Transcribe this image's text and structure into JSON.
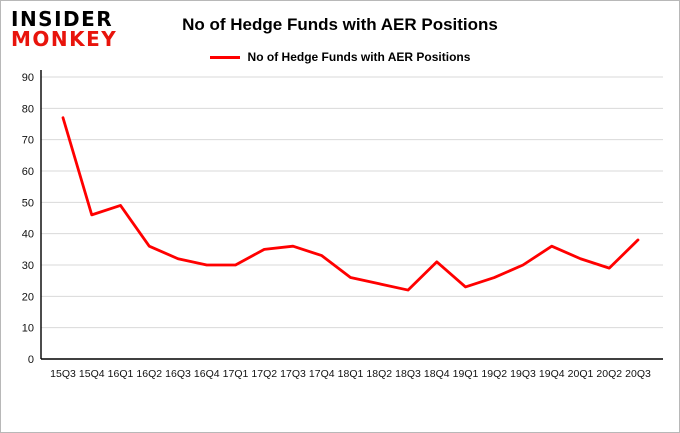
{
  "logo": {
    "line1": "INSIDER",
    "line2": "MONKEY"
  },
  "header": {
    "title": "No of Hedge Funds with AER Positions"
  },
  "legend": {
    "label": "No of Hedge Funds with AER Positions"
  },
  "colors": {
    "line": "#ff0000",
    "logo_red": "#e8140c",
    "grid": "#d9d9d9",
    "axis": "#000000",
    "tick_text": "#111111"
  },
  "chart_data": {
    "type": "line",
    "title": "No of Hedge Funds with AER Positions",
    "categories": [
      "15Q3",
      "15Q4",
      "16Q1",
      "16Q2",
      "16Q3",
      "16Q4",
      "17Q1",
      "17Q2",
      "17Q3",
      "17Q4",
      "18Q1",
      "18Q2",
      "18Q3",
      "18Q4",
      "19Q1",
      "19Q2",
      "19Q3",
      "19Q4",
      "20Q1",
      "20Q2",
      "20Q3"
    ],
    "series": [
      {
        "name": "No of Hedge Funds with AER Positions",
        "color": "#ff0000",
        "values": [
          77,
          46,
          49,
          36,
          32,
          30,
          30,
          35,
          36,
          33,
          26,
          24,
          22,
          31,
          23,
          26,
          30,
          36,
          32,
          29,
          38
        ]
      }
    ],
    "ylim": [
      0,
      90
    ],
    "yticks": [
      0,
      10,
      20,
      30,
      40,
      50,
      60,
      70,
      80,
      90
    ],
    "grid": "horizontal",
    "legend_position": "top"
  }
}
